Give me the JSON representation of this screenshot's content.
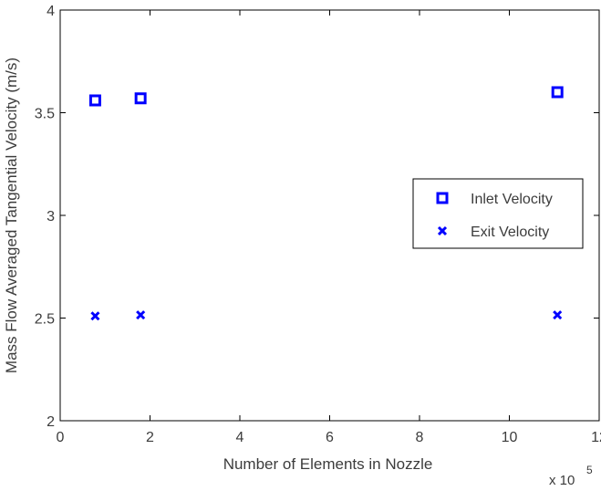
{
  "chart_data": {
    "type": "scatter",
    "title": "",
    "xlabel": "Number of Elements in Nozzle",
    "ylabel": "Mass Flow Averaged Tangential Velocity (m/s)",
    "x_multiplier_label": "x 10",
    "x_multiplier_exponent": "5",
    "xlim": [
      0,
      12
    ],
    "ylim": [
      2,
      4
    ],
    "xticks": [
      0,
      2,
      4,
      6,
      8,
      10,
      12
    ],
    "xtick_labels": [
      "0",
      "2",
      "4",
      "6",
      "8",
      "10",
      "12"
    ],
    "yticks": [
      2,
      2.5,
      3,
      3.5,
      4
    ],
    "ytick_labels": [
      "2",
      "2.5",
      "3",
      "3.5",
      "4"
    ],
    "grid": false,
    "legend_position": "right",
    "series": [
      {
        "name": "Inlet Velocity",
        "marker": "square",
        "color": "#0000ff",
        "x": [
          0.78,
          1.79,
          11.07
        ],
        "y": [
          3.56,
          3.57,
          3.6
        ]
      },
      {
        "name": "Exit Velocity",
        "marker": "x",
        "color": "#0000ff",
        "x": [
          0.78,
          1.79,
          11.07
        ],
        "y": [
          2.51,
          2.515,
          2.515
        ]
      }
    ]
  }
}
